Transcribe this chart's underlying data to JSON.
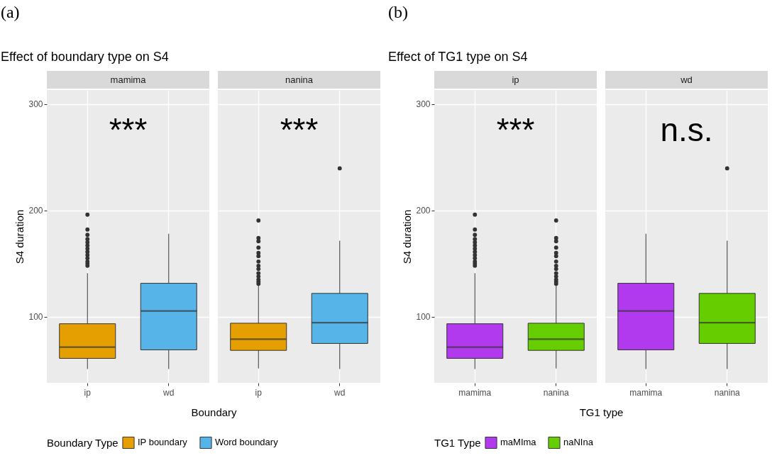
{
  "chart_data": [
    {
      "type": "box",
      "title": "(a)",
      "subtitle": "Effect of boundary type on S4",
      "xlabel": "Boundary",
      "ylabel": "S4 duration",
      "legend_title": "Boundary Type",
      "annotations": [
        "mamima",
        "***"
      ],
      "categories": [
        "ip",
        "wd"
      ],
      "series": [
        {
          "name": "IP boundary",
          "color": "#e69f00",
          "boxes": [
            {
              "low": 51,
              "q1": 61,
              "median": 71.5,
              "q3": 93.5,
              "high": 141,
              "outliers": [
                148,
                150,
                152,
                155,
                158,
                161,
                164,
                167,
                170,
                173,
                177,
                182,
                196
              ]
            },
            null
          ]
        },
        {
          "name": "Word boundary",
          "color": "#56b4e9",
          "boxes": [
            null,
            {
              "low": 51,
              "q1": 69,
              "median": 105.5,
              "q3": 131.5,
              "high": 178
            }
          ]
        }
      ],
      "ylim": [
        38,
        313
      ],
      "yticks": [
        100,
        200,
        300
      ],
      "grid": true,
      "legend": "bottom"
    },
    {
      "type": "box",
      "annotations": [
        "nanina",
        "***"
      ],
      "categories": [
        "ip",
        "wd"
      ],
      "series": [
        {
          "name": "IP boundary",
          "color": "#e69f00",
          "boxes": [
            {
              "low": 51.5,
              "q1": 68.5,
              "median": 79,
              "q3": 94,
              "high": 130.5,
              "outliers": [
                131,
                133,
                135,
                138,
                141,
                145,
                148,
                152,
                157,
                160,
                165,
                171,
                174,
                190.5
              ]
            },
            null
          ]
        },
        {
          "name": "Word boundary",
          "color": "#56b4e9",
          "boxes": [
            null,
            {
              "low": 51,
              "q1": 75,
              "median": 94.5,
              "q3": 122,
              "high": 171.5,
              "outliers": [
                239.5
              ]
            }
          ]
        }
      ],
      "ylim": [
        38,
        313
      ],
      "yticks": [
        100,
        200,
        300
      ],
      "grid": true,
      "legend": "bottom",
      "tick_labels": "x"
    },
    {
      "type": "box",
      "title": "(b)",
      "subtitle": "Effect of TG1 type on S4",
      "xlabel": "TG1 type",
      "ylabel": "S4 duration",
      "legend_title": "TG1 Type",
      "annotations": [
        "ip",
        "***"
      ],
      "categories": [
        "mamima",
        "nanina"
      ],
      "series": [
        {
          "name": "maMIma",
          "color": "#b23aee",
          "boxes": [
            {
              "low": 51,
              "q1": 61,
              "median": 71.5,
              "q3": 93.5,
              "high": 141,
              "outliers": [
                148,
                150,
                152,
                155,
                158,
                161,
                164,
                167,
                170,
                173,
                177,
                182,
                196
              ]
            },
            null
          ]
        },
        {
          "name": "naNIna",
          "color": "#66cd00",
          "boxes": [
            null,
            {
              "low": 51.5,
              "q1": 68.5,
              "median": 79,
              "q3": 94,
              "high": 130.5,
              "outliers": [
                131,
                133,
                135,
                138,
                141,
                145,
                148,
                152,
                157,
                160,
                165,
                171,
                174,
                190.5
              ]
            }
          ]
        }
      ],
      "ylim": [
        38,
        313
      ],
      "yticks": [
        100,
        200,
        300
      ],
      "grid": true,
      "legend": "bottom"
    },
    {
      "type": "box",
      "annotations": [
        "wd",
        "n.s."
      ],
      "categories": [
        "mamima",
        "nanina"
      ],
      "series": [
        {
          "name": "maMIma",
          "color": "#b23aee",
          "boxes": [
            {
              "low": 51,
              "q1": 69,
              "median": 105.5,
              "q3": 131.5,
              "high": 178
            },
            null
          ]
        },
        {
          "name": "naNIna",
          "color": "#66cd00",
          "boxes": [
            null,
            {
              "low": 51,
              "q1": 75,
              "median": 94.5,
              "q3": 122,
              "high": 171.5,
              "outliers": [
                239.5
              ]
            }
          ]
        }
      ],
      "ylim": [
        38,
        313
      ],
      "yticks": [
        100,
        200,
        300
      ],
      "grid": true,
      "legend": "bottom",
      "tick_labels": "x"
    }
  ]
}
